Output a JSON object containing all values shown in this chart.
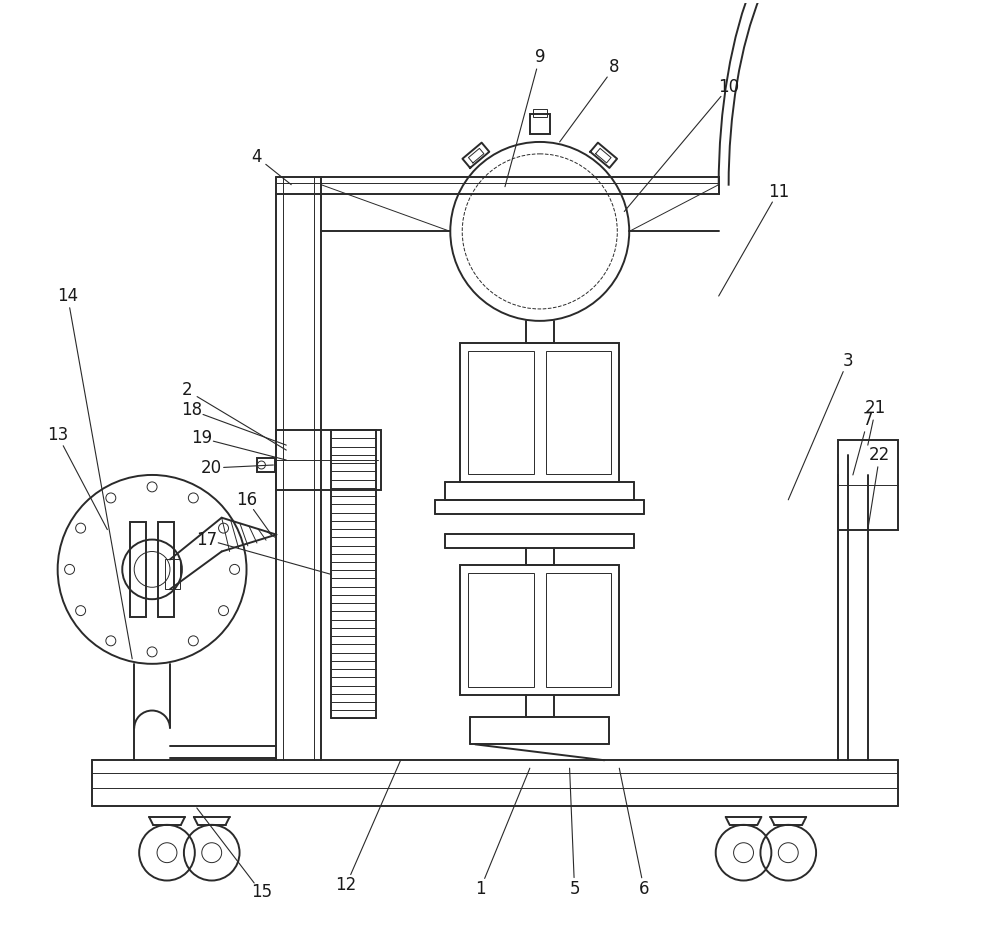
{
  "background_color": "#ffffff",
  "line_color": "#2a2a2a",
  "lw": 1.4,
  "tlw": 0.7,
  "figsize": [
    10.0,
    9.33
  ],
  "dpi": 100
}
